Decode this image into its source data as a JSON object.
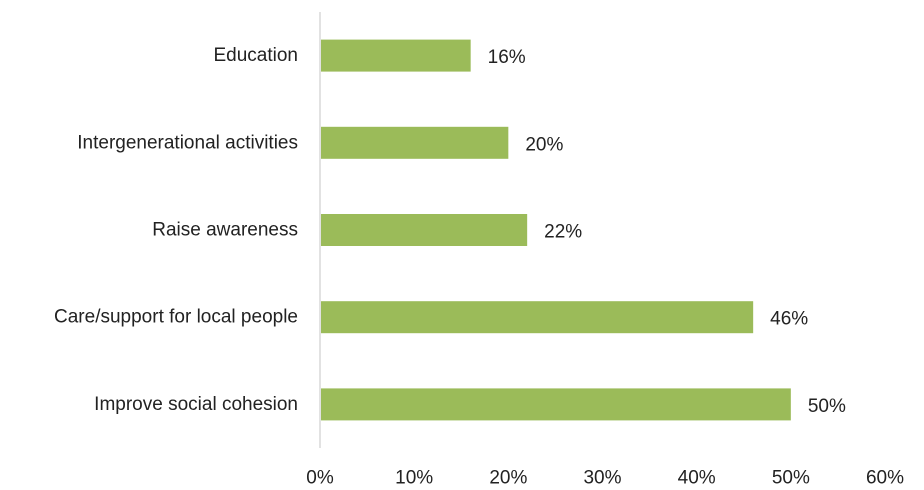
{
  "chart_data": {
    "type": "bar",
    "orientation": "horizontal",
    "categories": [
      "Education",
      "Intergenerational activities",
      "Raise awareness",
      "Care/support for local people",
      "Improve social cohesion"
    ],
    "values": [
      16,
      20,
      22,
      46,
      50
    ],
    "data_labels": [
      "16%",
      "20%",
      "22%",
      "46%",
      "50%"
    ],
    "xlim": [
      0,
      60
    ],
    "x_ticks": [
      0,
      10,
      20,
      30,
      40,
      50,
      60
    ],
    "x_tick_labels": [
      "0%",
      "10%",
      "20%",
      "30%",
      "40%",
      "50%",
      "60%"
    ],
    "grid": false,
    "legend": "none",
    "bar_color": "#9bbb59",
    "axis_color": "#d9d9d9"
  }
}
